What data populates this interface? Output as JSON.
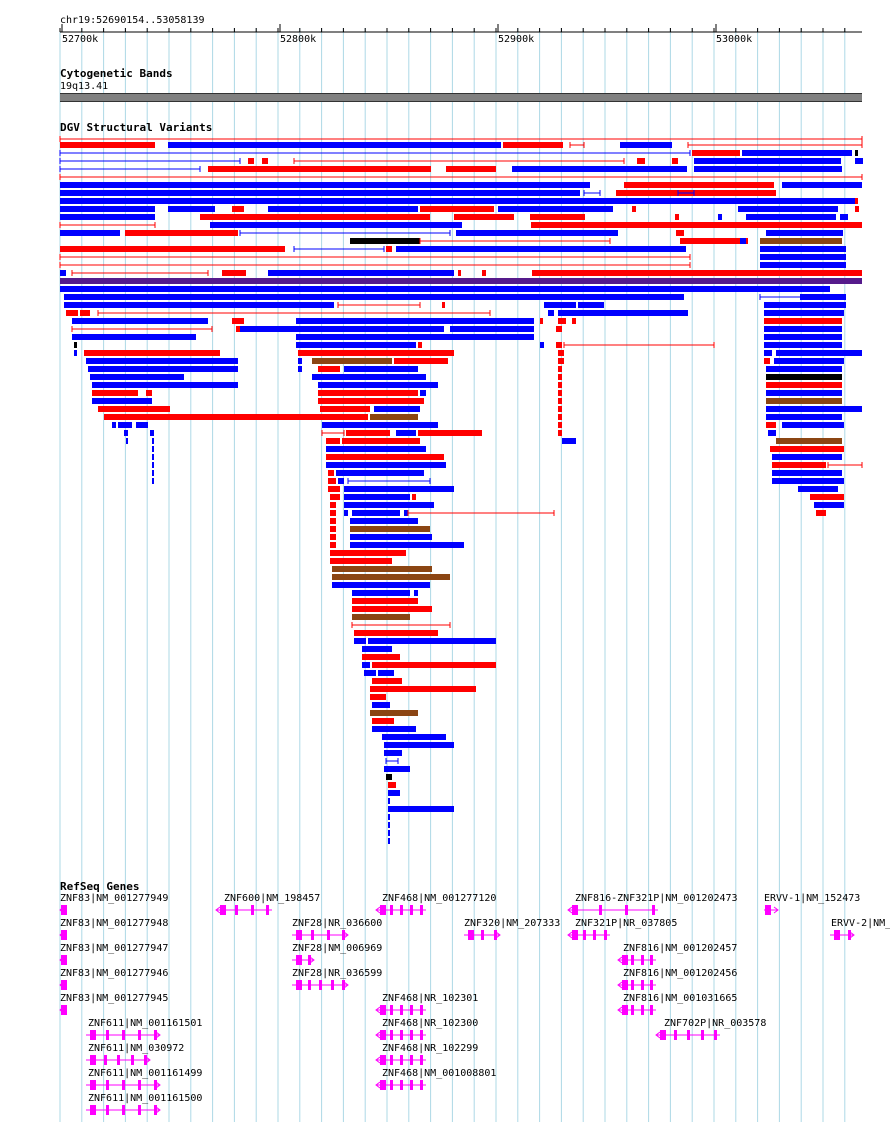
{
  "ruler": {
    "location": "chr19:52690154..53058139",
    "ticks": [
      "52700k",
      "52800k",
      "52900k",
      "53000k"
    ]
  },
  "tracks": {
    "cytoband": {
      "title": "Cytogenetic Bands",
      "band": "19q13.41"
    },
    "dgv": {
      "title": "DGV Structural Variants"
    },
    "refseq": {
      "title": "RefSeq Genes",
      "genes": [
        "ZNF83|NM_001277949",
        "ZNF600|NM_198457",
        "ZNF468|NM_001277120",
        "ZNF816-ZNF321P|NM_001202473",
        "ERVV-1|NM_152473",
        "ZNF83|NM_001277948",
        "ZNF28|NR_036600",
        "ZNF320|NM_207333",
        "ZNF321P|NR_037805",
        "ERVV-2|NM_",
        "ZNF83|NM_001277947",
        "ZNF28|NM_006969",
        "ZNF816|NM_001202457",
        "ZNF83|NM_001277946",
        "ZNF28|NR_036599",
        "ZNF816|NM_001202456",
        "ZNF83|NM_001277945",
        "ZNF468|NR_102301",
        "ZNF816|NM_001031665",
        "ZNF611|NM_001161501",
        "ZNF468|NR_102300",
        "ZNF702P|NR_003578",
        "ZNF611|NM_030972",
        "ZNF468|NR_102299",
        "ZNF611|NM_001161499",
        "ZNF468|NM_001008801",
        "ZNF611|NM_001161500"
      ]
    }
  },
  "colors": {
    "gain": "#ff0000",
    "loss": "#0000ff",
    "both": "#8b4513",
    "complex": "#000000",
    "inversion": "#551a8b",
    "gene": "#ff00ff",
    "band": "#808080",
    "grid": "#add8e6"
  }
}
